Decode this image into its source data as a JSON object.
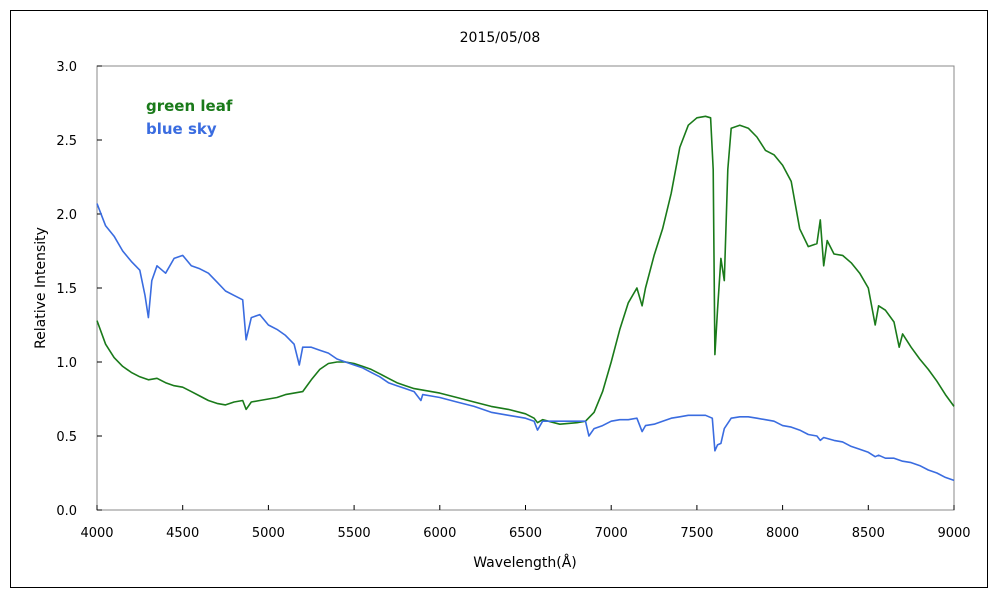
{
  "chart_data": {
    "type": "line",
    "title": "2015/05/08",
    "xlabel": "Wavelength(Å)",
    "ylabel": "Relative Intensity",
    "xlim": [
      4000,
      9000
    ],
    "ylim": [
      0,
      3.0
    ],
    "xticks": [
      "4000",
      "4500",
      "5000",
      "5500",
      "6000",
      "6500",
      "7000",
      "7500",
      "8000",
      "8500",
      "9000"
    ],
    "yticks": [
      "0.0",
      "0.5",
      "1.0",
      "1.5",
      "2.0",
      "2.5",
      "3.0"
    ],
    "grid": false,
    "legend_position": "top-left",
    "series": [
      {
        "name": "green leaf",
        "color": "#1a7a1a",
        "points": [
          [
            4000,
            1.28
          ],
          [
            4050,
            1.12
          ],
          [
            4100,
            1.03
          ],
          [
            4150,
            0.97
          ],
          [
            4200,
            0.93
          ],
          [
            4250,
            0.9
          ],
          [
            4300,
            0.88
          ],
          [
            4350,
            0.89
          ],
          [
            4400,
            0.86
          ],
          [
            4450,
            0.84
          ],
          [
            4500,
            0.83
          ],
          [
            4550,
            0.8
          ],
          [
            4600,
            0.77
          ],
          [
            4650,
            0.74
          ],
          [
            4700,
            0.72
          ],
          [
            4750,
            0.71
          ],
          [
            4800,
            0.73
          ],
          [
            4850,
            0.74
          ],
          [
            4870,
            0.68
          ],
          [
            4900,
            0.73
          ],
          [
            4950,
            0.74
          ],
          [
            5000,
            0.75
          ],
          [
            5050,
            0.76
          ],
          [
            5100,
            0.78
          ],
          [
            5150,
            0.79
          ],
          [
            5200,
            0.8
          ],
          [
            5250,
            0.88
          ],
          [
            5300,
            0.95
          ],
          [
            5350,
            0.99
          ],
          [
            5400,
            1.0
          ],
          [
            5450,
            1.0
          ],
          [
            5500,
            0.99
          ],
          [
            5550,
            0.97
          ],
          [
            5600,
            0.95
          ],
          [
            5650,
            0.92
          ],
          [
            5700,
            0.89
          ],
          [
            5750,
            0.86
          ],
          [
            5800,
            0.84
          ],
          [
            5850,
            0.82
          ],
          [
            5900,
            0.81
          ],
          [
            5950,
            0.8
          ],
          [
            6000,
            0.79
          ],
          [
            6100,
            0.76
          ],
          [
            6200,
            0.73
          ],
          [
            6300,
            0.7
          ],
          [
            6400,
            0.68
          ],
          [
            6500,
            0.65
          ],
          [
            6550,
            0.62
          ],
          [
            6570,
            0.59
          ],
          [
            6600,
            0.61
          ],
          [
            6700,
            0.58
          ],
          [
            6800,
            0.59
          ],
          [
            6850,
            0.6
          ],
          [
            6900,
            0.66
          ],
          [
            6950,
            0.8
          ],
          [
            7000,
            1.0
          ],
          [
            7050,
            1.22
          ],
          [
            7100,
            1.4
          ],
          [
            7150,
            1.5
          ],
          [
            7180,
            1.38
          ],
          [
            7200,
            1.5
          ],
          [
            7250,
            1.72
          ],
          [
            7300,
            1.9
          ],
          [
            7350,
            2.14
          ],
          [
            7400,
            2.45
          ],
          [
            7450,
            2.6
          ],
          [
            7500,
            2.65
          ],
          [
            7550,
            2.66
          ],
          [
            7580,
            2.65
          ],
          [
            7595,
            2.3
          ],
          [
            7605,
            1.05
          ],
          [
            7620,
            1.35
          ],
          [
            7640,
            1.7
          ],
          [
            7660,
            1.55
          ],
          [
            7680,
            2.3
          ],
          [
            7700,
            2.58
          ],
          [
            7750,
            2.6
          ],
          [
            7800,
            2.58
          ],
          [
            7850,
            2.52
          ],
          [
            7900,
            2.43
          ],
          [
            7950,
            2.4
          ],
          [
            8000,
            2.33
          ],
          [
            8050,
            2.22
          ],
          [
            8100,
            1.9
          ],
          [
            8150,
            1.78
          ],
          [
            8200,
            1.8
          ],
          [
            8220,
            1.96
          ],
          [
            8240,
            1.65
          ],
          [
            8260,
            1.82
          ],
          [
            8300,
            1.73
          ],
          [
            8350,
            1.72
          ],
          [
            8400,
            1.67
          ],
          [
            8450,
            1.6
          ],
          [
            8500,
            1.5
          ],
          [
            8540,
            1.25
          ],
          [
            8560,
            1.38
          ],
          [
            8600,
            1.35
          ],
          [
            8650,
            1.27
          ],
          [
            8680,
            1.1
          ],
          [
            8700,
            1.19
          ],
          [
            8750,
            1.1
          ],
          [
            8800,
            1.02
          ],
          [
            8850,
            0.95
          ],
          [
            8900,
            0.87
          ],
          [
            8950,
            0.78
          ],
          [
            9000,
            0.7
          ]
        ]
      },
      {
        "name": "blue sky",
        "color": "#3a6ce0",
        "points": [
          [
            4000,
            2.07
          ],
          [
            4050,
            1.92
          ],
          [
            4100,
            1.85
          ],
          [
            4150,
            1.75
          ],
          [
            4200,
            1.68
          ],
          [
            4250,
            1.62
          ],
          [
            4280,
            1.45
          ],
          [
            4300,
            1.3
          ],
          [
            4320,
            1.55
          ],
          [
            4350,
            1.65
          ],
          [
            4400,
            1.6
          ],
          [
            4450,
            1.7
          ],
          [
            4500,
            1.72
          ],
          [
            4550,
            1.65
          ],
          [
            4600,
            1.63
          ],
          [
            4650,
            1.6
          ],
          [
            4700,
            1.54
          ],
          [
            4750,
            1.48
          ],
          [
            4800,
            1.45
          ],
          [
            4850,
            1.42
          ],
          [
            4870,
            1.15
          ],
          [
            4900,
            1.3
          ],
          [
            4950,
            1.32
          ],
          [
            5000,
            1.25
          ],
          [
            5050,
            1.22
          ],
          [
            5100,
            1.18
          ],
          [
            5150,
            1.12
          ],
          [
            5180,
            0.98
          ],
          [
            5200,
            1.1
          ],
          [
            5250,
            1.1
          ],
          [
            5300,
            1.08
          ],
          [
            5350,
            1.06
          ],
          [
            5400,
            1.02
          ],
          [
            5450,
            1.0
          ],
          [
            5500,
            0.98
          ],
          [
            5550,
            0.96
          ],
          [
            5600,
            0.93
          ],
          [
            5650,
            0.9
          ],
          [
            5700,
            0.86
          ],
          [
            5750,
            0.84
          ],
          [
            5800,
            0.82
          ],
          [
            5850,
            0.8
          ],
          [
            5890,
            0.74
          ],
          [
            5900,
            0.78
          ],
          [
            5950,
            0.77
          ],
          [
            6000,
            0.76
          ],
          [
            6100,
            0.73
          ],
          [
            6200,
            0.7
          ],
          [
            6300,
            0.66
          ],
          [
            6400,
            0.64
          ],
          [
            6500,
            0.62
          ],
          [
            6550,
            0.6
          ],
          [
            6570,
            0.54
          ],
          [
            6600,
            0.6
          ],
          [
            6700,
            0.6
          ],
          [
            6800,
            0.6
          ],
          [
            6850,
            0.6
          ],
          [
            6870,
            0.5
          ],
          [
            6900,
            0.55
          ],
          [
            6950,
            0.57
          ],
          [
            7000,
            0.6
          ],
          [
            7050,
            0.61
          ],
          [
            7100,
            0.61
          ],
          [
            7150,
            0.62
          ],
          [
            7180,
            0.53
          ],
          [
            7200,
            0.57
          ],
          [
            7250,
            0.58
          ],
          [
            7300,
            0.6
          ],
          [
            7350,
            0.62
          ],
          [
            7400,
            0.63
          ],
          [
            7450,
            0.64
          ],
          [
            7500,
            0.64
          ],
          [
            7550,
            0.64
          ],
          [
            7590,
            0.62
          ],
          [
            7605,
            0.4
          ],
          [
            7620,
            0.44
          ],
          [
            7640,
            0.45
          ],
          [
            7660,
            0.55
          ],
          [
            7700,
            0.62
          ],
          [
            7750,
            0.63
          ],
          [
            7800,
            0.63
          ],
          [
            7850,
            0.62
          ],
          [
            7900,
            0.61
          ],
          [
            7950,
            0.6
          ],
          [
            8000,
            0.57
          ],
          [
            8050,
            0.56
          ],
          [
            8100,
            0.54
          ],
          [
            8150,
            0.51
          ],
          [
            8200,
            0.5
          ],
          [
            8220,
            0.47
          ],
          [
            8240,
            0.49
          ],
          [
            8300,
            0.47
          ],
          [
            8350,
            0.46
          ],
          [
            8400,
            0.43
          ],
          [
            8450,
            0.41
          ],
          [
            8500,
            0.39
          ],
          [
            8540,
            0.36
          ],
          [
            8560,
            0.37
          ],
          [
            8600,
            0.35
          ],
          [
            8650,
            0.35
          ],
          [
            8700,
            0.33
          ],
          [
            8750,
            0.32
          ],
          [
            8800,
            0.3
          ],
          [
            8850,
            0.27
          ],
          [
            8900,
            0.25
          ],
          [
            8950,
            0.22
          ],
          [
            9000,
            0.2
          ]
        ]
      }
    ]
  }
}
